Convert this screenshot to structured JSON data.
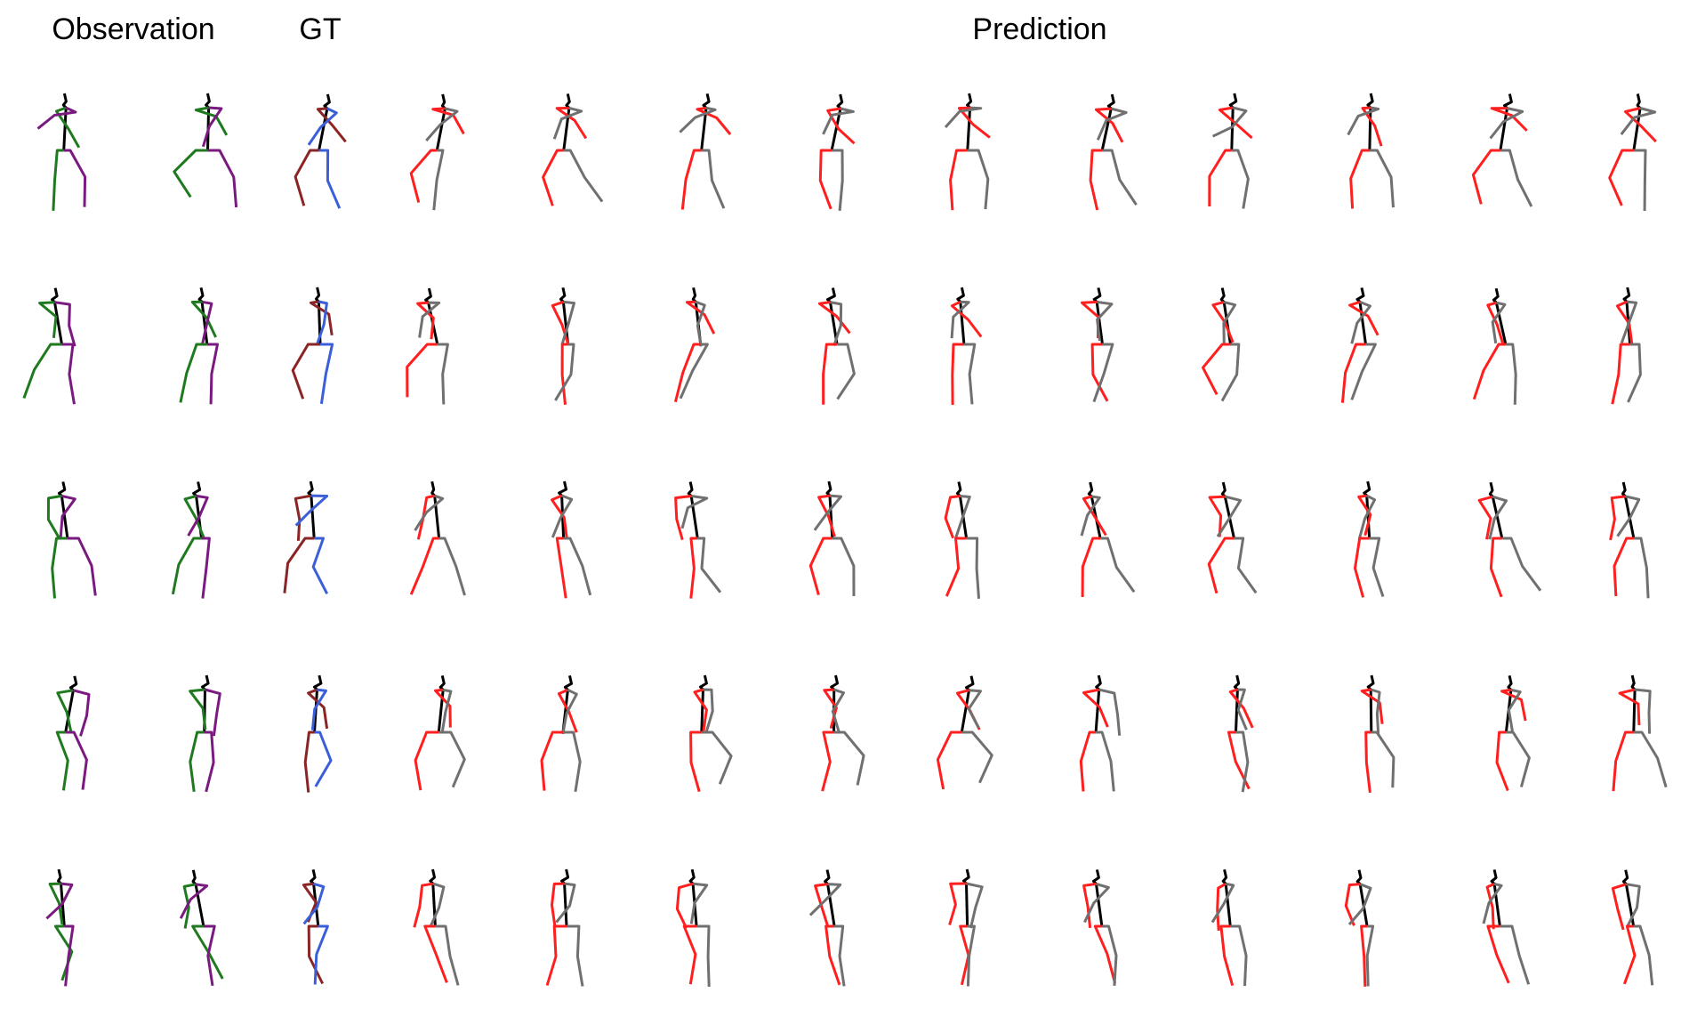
{
  "titles": {
    "observation": "Observation",
    "gt": "GT",
    "prediction": "Prediction"
  },
  "colors": {
    "spine": "#000000",
    "observation_left": "#1f7a1f",
    "observation_right": "#7a1a80",
    "gt_left": "#8b2525",
    "gt_right": "#3b5fd8",
    "prediction_left": "#ff1f1f",
    "prediction_right": "#707070"
  },
  "groups": [
    {
      "name": "observation",
      "columns": 2
    },
    {
      "name": "gt",
      "columns": 1
    },
    {
      "name": "prediction",
      "columns": 10
    }
  ],
  "rows": 5
}
